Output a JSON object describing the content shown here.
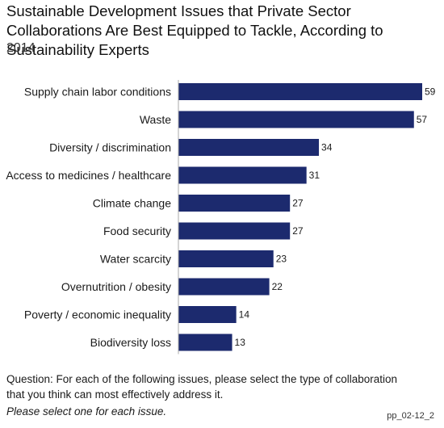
{
  "chart_data": {
    "type": "bar",
    "orientation": "horizontal",
    "title": "Sustainable Development Issues that Private Sector Collaborations Are Best Equipped to Tackle, According to Sustainability Experts",
    "subtitle": "2014",
    "categories": [
      "Supply chain labor conditions",
      "Waste",
      "Diversity / discrimination",
      "Access to medicines / healthcare",
      "Climate change",
      "Food security",
      "Water scarcity",
      "Overnutrition / obesity",
      "Poverty / economic inequality",
      "Biodiversity loss"
    ],
    "values": [
      59,
      57,
      34,
      31,
      27,
      27,
      23,
      22,
      14,
      13
    ],
    "xlim": [
      0,
      59
    ],
    "grid": false,
    "bar_color": "#1c2a6e"
  },
  "footer": {
    "question": "Question: For each of the following issues, please select the type of collaboration that you think can most effectively address it.",
    "instruction": "Please select one for each issue.",
    "figure_id": "pp_02-12_2"
  }
}
